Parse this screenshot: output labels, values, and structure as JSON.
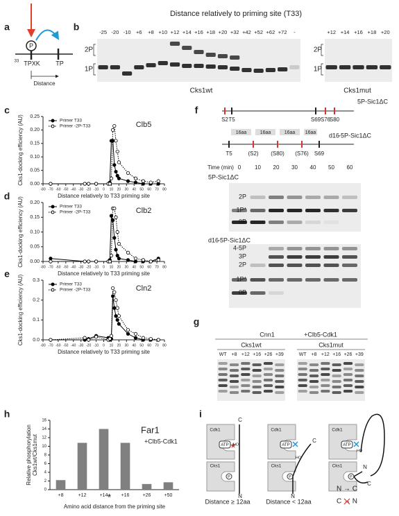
{
  "a": {
    "label": "a",
    "p": "P",
    "site_sup": "33",
    "site": "TPXK",
    "tp": "TP",
    "distance": "Distance"
  },
  "b": {
    "label": "b",
    "title": "Distance relatively to priming site (T33)",
    "lanes_wt": [
      "-25",
      "-20",
      "-10",
      "+6",
      "+8",
      "+10",
      "+12",
      "+14",
      "+16",
      "+18",
      "+20",
      "+32",
      "+42",
      "+52",
      "+62",
      "+72",
      "-"
    ],
    "lanes_mut": [
      "+12",
      "+14",
      "+16",
      "+18",
      "+20"
    ],
    "bands": [
      "2P",
      "1P"
    ],
    "gel_wt": "Cks1wt",
    "gel_mut": "Cks1mut"
  },
  "chart_data": [
    {
      "type": "line",
      "label": "c",
      "title": "Clb5",
      "xlabel": "Distance relatively to T33 priming site",
      "ylabel": "Cks1-docking efficiency (AU)",
      "x": [
        -70,
        -25,
        -20,
        -10,
        6,
        8,
        10,
        12,
        14,
        16,
        18,
        20,
        32,
        42,
        52,
        62,
        72
      ],
      "series": [
        {
          "name": "Primer T33",
          "color": "#000000",
          "marker": "filled",
          "dash": false,
          "values": [
            0,
            0,
            0,
            0,
            0,
            0.005,
            0.16,
            0.16,
            0.07,
            0.045,
            0.03,
            0.02,
            0.01,
            0.005,
            0,
            0,
            0
          ]
        },
        {
          "name": "Primer -2P-T33",
          "color": "#000000",
          "marker": "open",
          "dash": true,
          "values": [
            0,
            0,
            0,
            0,
            0,
            0,
            0.02,
            0.2,
            0.215,
            0.16,
            0.12,
            0.08,
            0.04,
            0.02,
            0.01,
            0.005,
            0.01
          ]
        }
      ],
      "xlim": [
        -80,
        80
      ],
      "xticks": [
        -80,
        -70,
        -60,
        -50,
        -40,
        -30,
        -20,
        -10,
        0,
        10,
        20,
        30,
        40,
        50,
        60,
        70,
        80
      ],
      "ylim": [
        0,
        0.25
      ],
      "yticks": [
        {
          "value": 0,
          "label": "0.00"
        },
        {
          "value": 0.05,
          "label": "0.05"
        },
        {
          "value": 0.1,
          "label": "0.10"
        },
        {
          "value": 0.15,
          "label": "0.15"
        },
        {
          "value": 0.2,
          "label": "0.20"
        },
        {
          "value": 0.25,
          "label": "0.25"
        }
      ]
    },
    {
      "type": "line",
      "label": "d",
      "title": "Clb2",
      "xlabel": "Distance relatively to T33 priming site",
      "ylabel": "Cks1-docking efficiency (AU)",
      "x": [
        -70,
        -25,
        -20,
        -10,
        6,
        8,
        10,
        12,
        14,
        16,
        18,
        20,
        32,
        42,
        52,
        62,
        72
      ],
      "series": [
        {
          "name": "Primer T33",
          "color": "#000000",
          "marker": "filled",
          "dash": false,
          "values": [
            0.01,
            0,
            0,
            0,
            0,
            0.005,
            0.155,
            0.14,
            0.08,
            0.04,
            0.02,
            0.01,
            0.005,
            0,
            0,
            0,
            0.01
          ]
        },
        {
          "name": "Primer -2P-T33",
          "color": "#000000",
          "marker": "open",
          "dash": true,
          "values": [
            0,
            0,
            0,
            0,
            0,
            0,
            0.02,
            0.18,
            0.18,
            0.15,
            0.1,
            0.06,
            0.03,
            0.01,
            0.005,
            0,
            0.005
          ]
        }
      ],
      "xlim": [
        -80,
        80
      ],
      "xticks": [
        -80,
        -70,
        -60,
        -50,
        -40,
        -30,
        -20,
        -10,
        0,
        10,
        20,
        30,
        40,
        50,
        60,
        70,
        80
      ],
      "ylim": [
        0,
        0.2
      ],
      "yticks": [
        {
          "value": 0,
          "label": "0.00"
        },
        {
          "value": 0.05,
          "label": "0.05"
        },
        {
          "value": 0.1,
          "label": "0.10"
        },
        {
          "value": 0.15,
          "label": "0.15"
        },
        {
          "value": 0.2,
          "label": "0.20"
        }
      ]
    },
    {
      "type": "line",
      "label": "e",
      "title": "Cln2",
      "xlabel": "Distance relatively to T33 priming site",
      "ylabel": "Cks1-docking efficiency (AU)",
      "x": [
        -70,
        -25,
        -20,
        -10,
        6,
        8,
        10,
        12,
        14,
        16,
        18,
        20,
        32,
        42,
        52,
        62,
        72
      ],
      "series": [
        {
          "name": "Primer T33",
          "color": "#000000",
          "marker": "filled",
          "dash": false,
          "values": [
            0,
            0,
            0.005,
            0.02,
            0.01,
            0,
            0.005,
            0.22,
            0.16,
            0.12,
            0.1,
            0.08,
            0.03,
            0.01,
            0,
            0,
            0
          ]
        },
        {
          "name": "Primer -2P-T33",
          "color": "#000000",
          "marker": "open",
          "dash": true,
          "values": [
            0,
            0.01,
            0,
            0.015,
            0,
            0.005,
            0.02,
            0.26,
            0.24,
            0.2,
            0.16,
            0.12,
            0.05,
            0.03,
            0.01,
            0.005,
            0
          ]
        }
      ],
      "xlim": [
        -80,
        80
      ],
      "xticks": [
        -80,
        -70,
        -60,
        -50,
        -40,
        -30,
        -20,
        -10,
        0,
        10,
        20,
        30,
        40,
        50,
        60,
        70,
        80
      ],
      "ylim": [
        0,
        0.3
      ],
      "yticks": [
        {
          "value": 0,
          "label": "0.0"
        },
        {
          "value": 0.1,
          "label": "0.1"
        },
        {
          "value": 0.2,
          "label": "0.2"
        },
        {
          "value": 0.3,
          "label": "0.3"
        }
      ]
    },
    {
      "type": "bar",
      "label": "h",
      "title": "Far1",
      "subtitle": "+Clb5-Cdk1",
      "annotation": "*",
      "xlabel": "Amino acid distance from the priming site",
      "ylabel": [
        "Relative phosphorylation",
        "Cks1wt/Cks1mut"
      ],
      "categories": [
        "+8",
        "+12",
        "+14",
        "+16",
        "+26",
        "+50"
      ],
      "values": [
        2.2,
        10.8,
        14,
        10.8,
        1.3,
        1.7
      ],
      "color": "#808080",
      "ylim": [
        0,
        16
      ],
      "yticks": [
        0,
        2,
        4,
        6,
        8,
        10,
        12,
        14,
        16
      ]
    }
  ],
  "f": {
    "label": "f",
    "construct1": "5P-Sic1ΔC",
    "sites1": [
      "S2",
      "T5",
      "S69",
      "S76",
      "S80"
    ],
    "construct2_prefix": "d16",
    "construct2": "-5P-Sic1ΔC",
    "spacer": [
      "16aa",
      "16aa",
      "16aa",
      "16aa"
    ],
    "sites2": [
      "T5",
      "(S2)",
      "(S80)",
      "(S76)",
      "S69"
    ],
    "time_label": "Time (min)",
    "times": [
      0,
      10,
      20,
      30,
      40,
      50,
      60
    ],
    "gel1": {
      "name": "5P-Sic1ΔC",
      "bands": [
        "2P",
        "1P*",
        "0P"
      ]
    },
    "gel2": {
      "prefix": "d16",
      "name": "-5P-Sic1ΔC",
      "bands": [
        "4-5P",
        "3P",
        "2P",
        "1P*",
        "0P"
      ]
    }
  },
  "g": {
    "label": "g",
    "substrate": "Cnn1",
    "kinase": "+Clb5-Cdk1",
    "gels": [
      {
        "name": "Cks1wt",
        "lanes": [
          "WT",
          "+8",
          "+12",
          "+16",
          "+26",
          "+39"
        ]
      },
      {
        "name": "Cks1mut",
        "lanes": [
          "WT",
          "+8",
          "+12",
          "+16",
          "+26",
          "+39"
        ]
      }
    ]
  },
  "i": {
    "label": "i",
    "diagrams": [
      {
        "kinase": "Cdk1",
        "adaptor": "Cks1",
        "atp": "ATP",
        "ho": "HO",
        "p": "P",
        "c": "C",
        "n": "N",
        "caption": "Distance ≥ 12aa"
      },
      {
        "kinase": "Cdk1",
        "adaptor": "Cks1",
        "atp": "ATP",
        "ho": "HO",
        "p": "P",
        "c": "C",
        "n": "N",
        "caption": "Distance < 12aa"
      },
      {
        "kinase": "Cdk1",
        "adaptor": "Cks1",
        "atp": "ATP",
        "ho": "HO",
        "p": "P",
        "c": "C",
        "n": "N"
      }
    ],
    "rules": [
      "N → C",
      "C → N"
    ]
  }
}
